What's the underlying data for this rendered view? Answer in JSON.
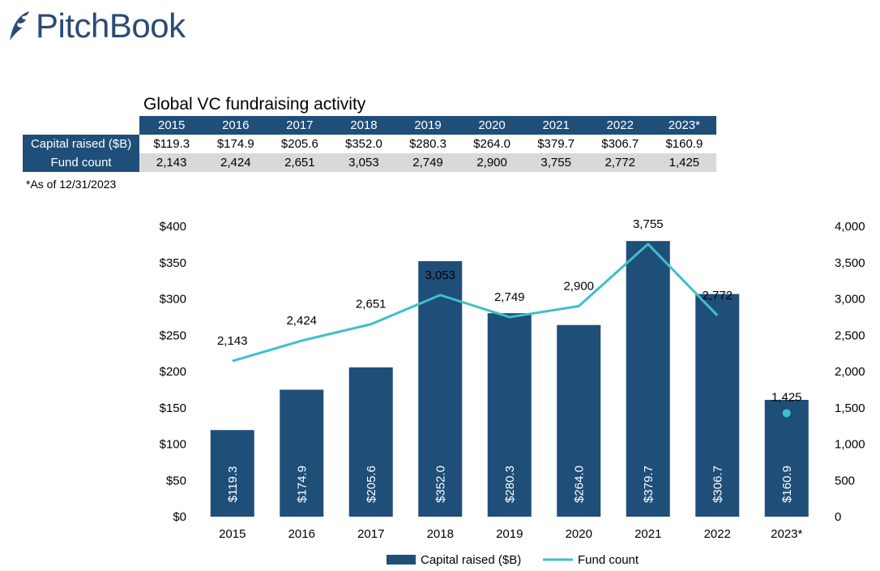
{
  "brand": {
    "name": "PitchBook",
    "color": "#2c4a75"
  },
  "table": {
    "title": "Global VC fundraising activity",
    "years": [
      "2015",
      "2016",
      "2017",
      "2018",
      "2019",
      "2020",
      "2021",
      "2022",
      "2023*"
    ],
    "rows": [
      {
        "label": "Capital raised ($B)",
        "values": [
          "$119.3",
          "$174.9",
          "$205.6",
          "$352.0",
          "$280.3",
          "$264.0",
          "$379.7",
          "$306.7",
          "$160.9"
        ]
      },
      {
        "label": "Fund count",
        "values": [
          "2,143",
          "2,424",
          "2,651",
          "3,053",
          "2,749",
          "2,900",
          "3,755",
          "2,772",
          "1,425"
        ]
      }
    ],
    "footnote": "*As of 12/31/2023"
  },
  "chart_data": {
    "type": "bar",
    "title": "",
    "categories": [
      "2015",
      "2016",
      "2017",
      "2018",
      "2019",
      "2020",
      "2021",
      "2022",
      "2023*"
    ],
    "series": [
      {
        "name": "Capital raised ($B)",
        "type": "bar",
        "axis": "left",
        "color": "#1f4e79",
        "values": [
          119.3,
          174.9,
          205.6,
          352.0,
          280.3,
          264.0,
          379.7,
          306.7,
          160.9
        ],
        "labels": [
          "$119.3",
          "$174.9",
          "$205.6",
          "$352.0",
          "$280.3",
          "$264.0",
          "$379.7",
          "$306.7",
          "$160.9"
        ]
      },
      {
        "name": "Fund count",
        "type": "line",
        "axis": "right",
        "color": "#3fbfc9",
        "values": [
          2143,
          2424,
          2651,
          3053,
          2749,
          2900,
          3755,
          2772,
          1425
        ],
        "labels": [
          "2,143",
          "2,424",
          "2,651",
          "3,053",
          "2,749",
          "2,900",
          "3,755",
          "2,772",
          "1,425"
        ],
        "connected_through": 8,
        "standalone_points": [
          8
        ]
      }
    ],
    "y_left": {
      "lim": [
        0,
        400
      ],
      "ticks": [
        0,
        50,
        100,
        150,
        200,
        250,
        300,
        350,
        400
      ],
      "tick_labels": [
        "$0",
        "$50",
        "$100",
        "$150",
        "$200",
        "$250",
        "$300",
        "$350",
        "$400"
      ]
    },
    "y_right": {
      "lim": [
        0,
        4000
      ],
      "ticks": [
        0,
        500,
        1000,
        1500,
        2000,
        2500,
        3000,
        3500,
        4000
      ],
      "tick_labels": [
        "0",
        "500",
        "1,000",
        "1,500",
        "2,000",
        "2,500",
        "3,000",
        "3,500",
        "4,000"
      ]
    },
    "grid": false,
    "legend": {
      "position": "bottom",
      "items": [
        "Capital raised ($B)",
        "Fund count"
      ]
    }
  }
}
